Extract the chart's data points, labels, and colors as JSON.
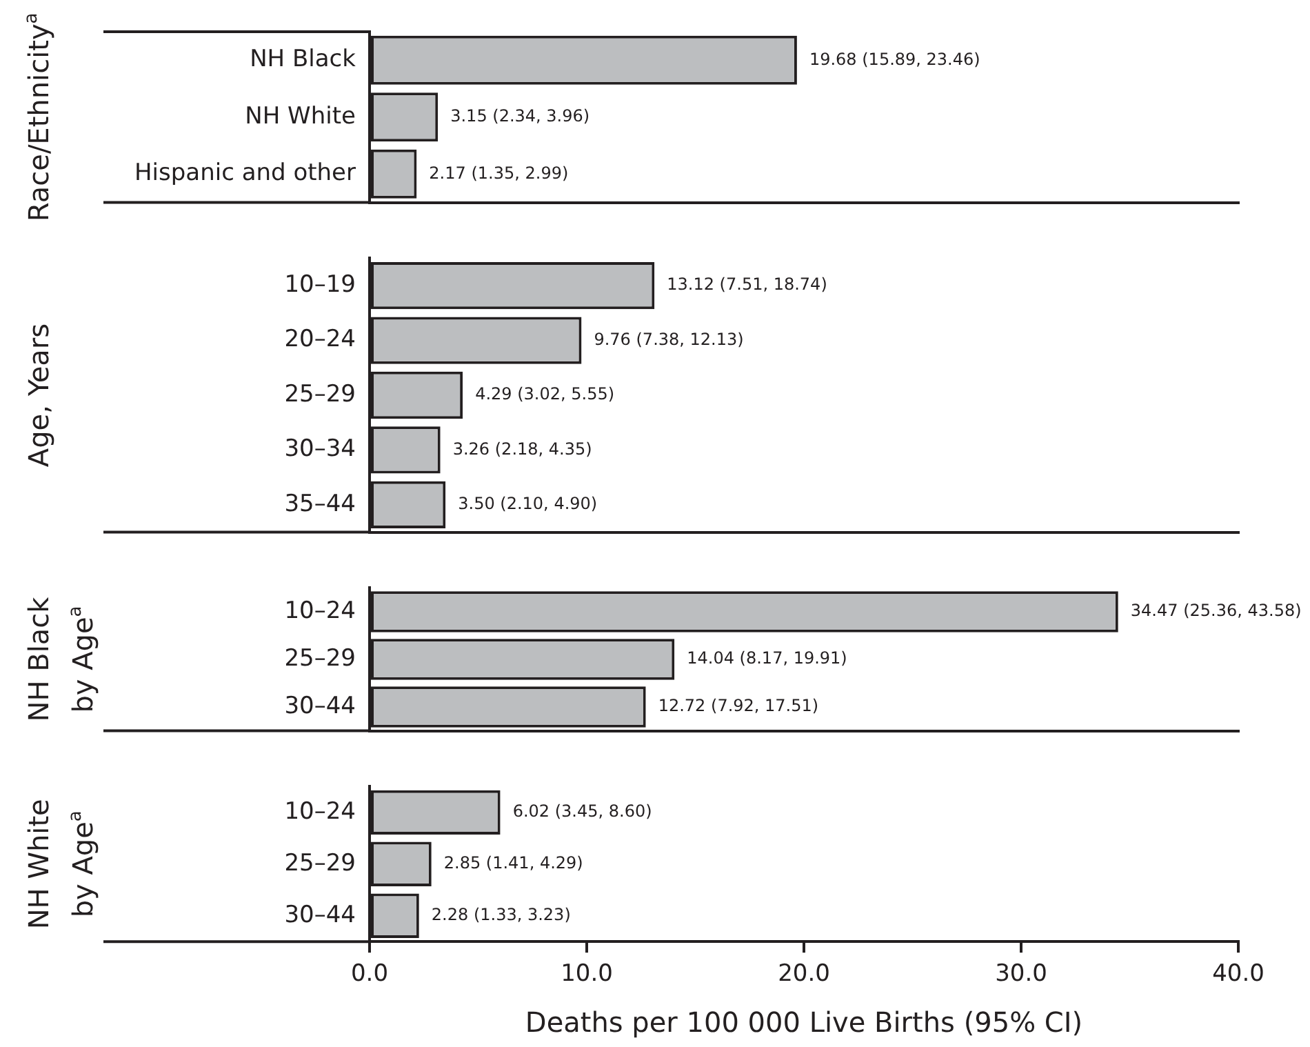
{
  "chart_data": [
    {
      "type": "bar",
      "orientation": "horizontal",
      "ylabel": "Race/Ethnicity$^{a}$",
      "categories": [
        "NH Black",
        "NH White",
        "Hispanic and other"
      ],
      "values": [
        19.68,
        3.15,
        2.17
      ],
      "value_labels": [
        "19.68 (15.89, 23.46)",
        "3.15 (2.34, 3.96)",
        "2.17 (1.35, 2.99)"
      ],
      "color": "#bcbec0",
      "xlim": [
        0,
        40
      ],
      "tick_labels": "y",
      "grid": false,
      "legend": false
    },
    {
      "type": "bar",
      "orientation": "horizontal",
      "ylabel": "Age, Years",
      "categories": [
        "10–19",
        "20–24",
        "25–29",
        "30–34",
        "35–44"
      ],
      "values": [
        13.12,
        9.76,
        4.29,
        3.26,
        3.5
      ],
      "value_labels": [
        "13.12 (7.51, 18.74)",
        "9.76 (7.38, 12.13)",
        "4.29 (3.02, 5.55)",
        "3.26 (2.18, 4.35)",
        "3.50 (2.10, 4.90)"
      ],
      "color": "#bcbec0",
      "xlim": [
        0,
        40
      ],
      "tick_labels": "y",
      "grid": false,
      "legend": false
    },
    {
      "type": "bar",
      "orientation": "horizontal",
      "ylabel": "NH Black\nby Age$^{a}$",
      "categories": [
        "10–24",
        "25–29",
        "30–44"
      ],
      "values": [
        34.47,
        14.04,
        12.72
      ],
      "value_labels": [
        "34.47 (25.36, 43.58)",
        "14.04 (8.17, 19.91)",
        "12.72 (7.92, 17.51)"
      ],
      "color": "#bcbec0",
      "xlim": [
        0,
        40
      ],
      "tick_labels": "y",
      "grid": false,
      "legend": false
    },
    {
      "type": "bar",
      "orientation": "horizontal",
      "ylabel": "NH White\nby Age$^{a}$",
      "categories": [
        "10–24",
        "25–29",
        "30–44"
      ],
      "values": [
        6.02,
        2.85,
        2.28
      ],
      "value_labels": [
        "6.02 (3.45, 8.60)",
        "2.85 (1.41, 4.29)",
        "2.28 (1.33, 3.23)"
      ],
      "color": "#bcbec0",
      "xlim": [
        0,
        40
      ],
      "xticks": [
        {
          "value": 0,
          "label": "0.0"
        },
        {
          "value": 10,
          "label": "10.0"
        },
        {
          "value": 20,
          "label": "20.0"
        },
        {
          "value": 30,
          "label": "30.0"
        },
        {
          "value": 40,
          "label": "40.0"
        }
      ],
      "xlabel": "Deaths per 100 000 Live Births (95% CI)",
      "grid": false,
      "legend": false
    }
  ]
}
